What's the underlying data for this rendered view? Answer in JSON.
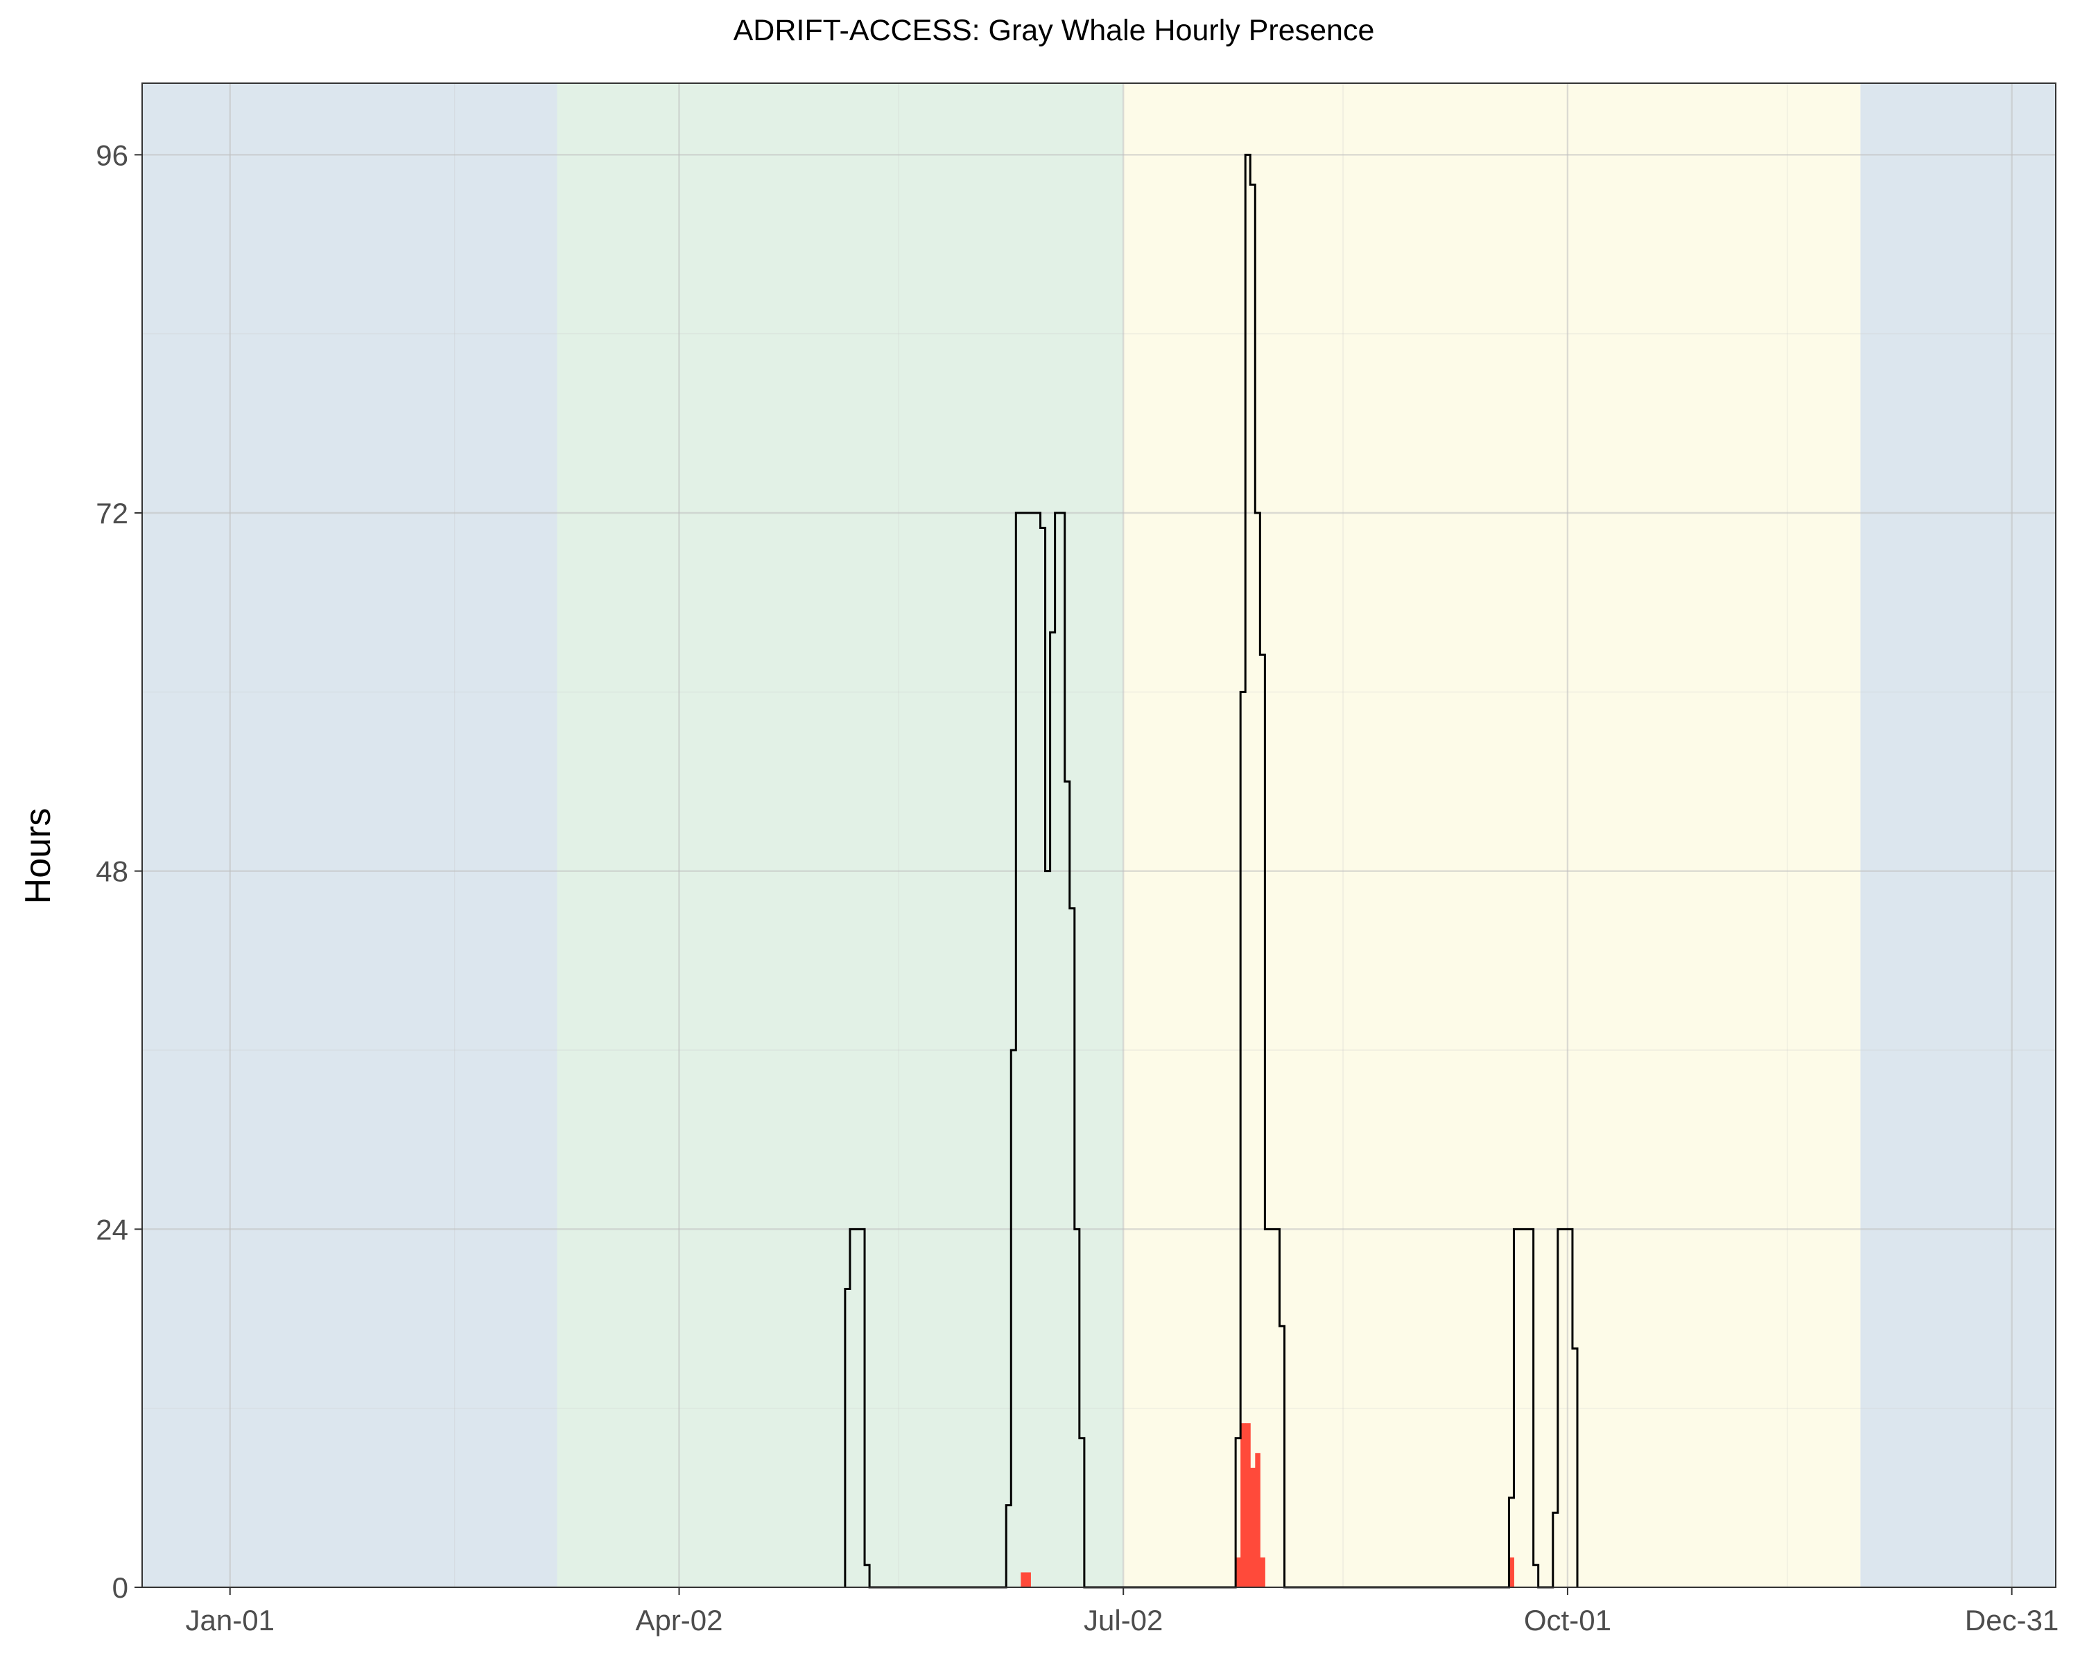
{
  "chart_data": {
    "type": "area",
    "title": "ADRIFT-ACCESS: Gray Whale Hourly Presence",
    "xlabel": "",
    "ylabel": "Hours",
    "x_axis": {
      "type": "date",
      "range": [
        "2023-12-14",
        "2025-01-09"
      ],
      "ticks": [
        {
          "date": "2024-01-01",
          "label": "Jan-01"
        },
        {
          "date": "2024-04-02",
          "label": "Apr-02"
        },
        {
          "date": "2024-07-02",
          "label": "Jul-02"
        },
        {
          "date": "2024-10-01",
          "label": "Oct-01"
        },
        {
          "date": "2024-12-31",
          "label": "Dec-31"
        }
      ],
      "minor_ticks": [
        "2024-02-16",
        "2024-05-17",
        "2024-08-16",
        "2024-11-15"
      ]
    },
    "y_axis": {
      "range": [
        0,
        100.8
      ],
      "ticks": [
        0,
        24,
        48,
        72,
        96
      ],
      "minor_ticks": [
        12,
        36,
        60,
        84
      ]
    },
    "grid": true,
    "background_periods": [
      {
        "start": "2023-12-14",
        "end": "2024-03-08",
        "color": "#dce6ee"
      },
      {
        "start": "2024-03-08",
        "end": "2024-07-02",
        "color": "#e2f1e6"
      },
      {
        "start": "2024-07-02",
        "end": "2024-11-30",
        "color": "#fdfbe8"
      },
      {
        "start": "2024-11-30",
        "end": "2025-01-09",
        "color": "#dce6ee"
      }
    ],
    "series": [
      {
        "style": "step-outline",
        "color": "#000000",
        "points": [
          {
            "date": "2024-05-06",
            "value": 20
          },
          {
            "date": "2024-05-07",
            "value": 24
          },
          {
            "date": "2024-05-10",
            "value": 1.5
          },
          {
            "date": "2024-05-11",
            "value": 0
          },
          {
            "date": "2024-06-08",
            "value": 5.5
          },
          {
            "date": "2024-06-09",
            "value": 36
          },
          {
            "date": "2024-06-10",
            "value": 72
          },
          {
            "date": "2024-06-15",
            "value": 71
          },
          {
            "date": "2024-06-16",
            "value": 48
          },
          {
            "date": "2024-06-17",
            "value": 64
          },
          {
            "date": "2024-06-18",
            "value": 72
          },
          {
            "date": "2024-06-20",
            "value": 54
          },
          {
            "date": "2024-06-21",
            "value": 45.5
          },
          {
            "date": "2024-06-22",
            "value": 24
          },
          {
            "date": "2024-06-23",
            "value": 10
          },
          {
            "date": "2024-06-24",
            "value": 0
          },
          {
            "date": "2024-07-25",
            "value": 10
          },
          {
            "date": "2024-07-26",
            "value": 60
          },
          {
            "date": "2024-07-27",
            "value": 96
          },
          {
            "date": "2024-07-28",
            "value": 94
          },
          {
            "date": "2024-07-29",
            "value": 72
          },
          {
            "date": "2024-07-30",
            "value": 62.5
          },
          {
            "date": "2024-07-31",
            "value": 24
          },
          {
            "date": "2024-08-03",
            "value": 17.5
          },
          {
            "date": "2024-08-04",
            "value": 0
          },
          {
            "date": "2024-09-19",
            "value": 6
          },
          {
            "date": "2024-09-20",
            "value": 24
          },
          {
            "date": "2024-09-24",
            "value": 1.5
          },
          {
            "date": "2024-09-25",
            "value": 0
          },
          {
            "date": "2024-09-28",
            "value": 5
          },
          {
            "date": "2024-09-29",
            "value": 24
          },
          {
            "date": "2024-10-02",
            "value": 16
          },
          {
            "date": "2024-10-03",
            "value": 0
          }
        ]
      },
      {
        "style": "filled-bars",
        "color": "#ff4a3a",
        "points": [
          {
            "date": "2024-06-11",
            "value": 1
          },
          {
            "date": "2024-06-12",
            "value": 1
          },
          {
            "date": "2024-07-25",
            "value": 2
          },
          {
            "date": "2024-07-26",
            "value": 11
          },
          {
            "date": "2024-07-27",
            "value": 11
          },
          {
            "date": "2024-07-28",
            "value": 8
          },
          {
            "date": "2024-07-29",
            "value": 9
          },
          {
            "date": "2024-07-30",
            "value": 2
          },
          {
            "date": "2024-09-19",
            "value": 2
          }
        ]
      }
    ]
  }
}
